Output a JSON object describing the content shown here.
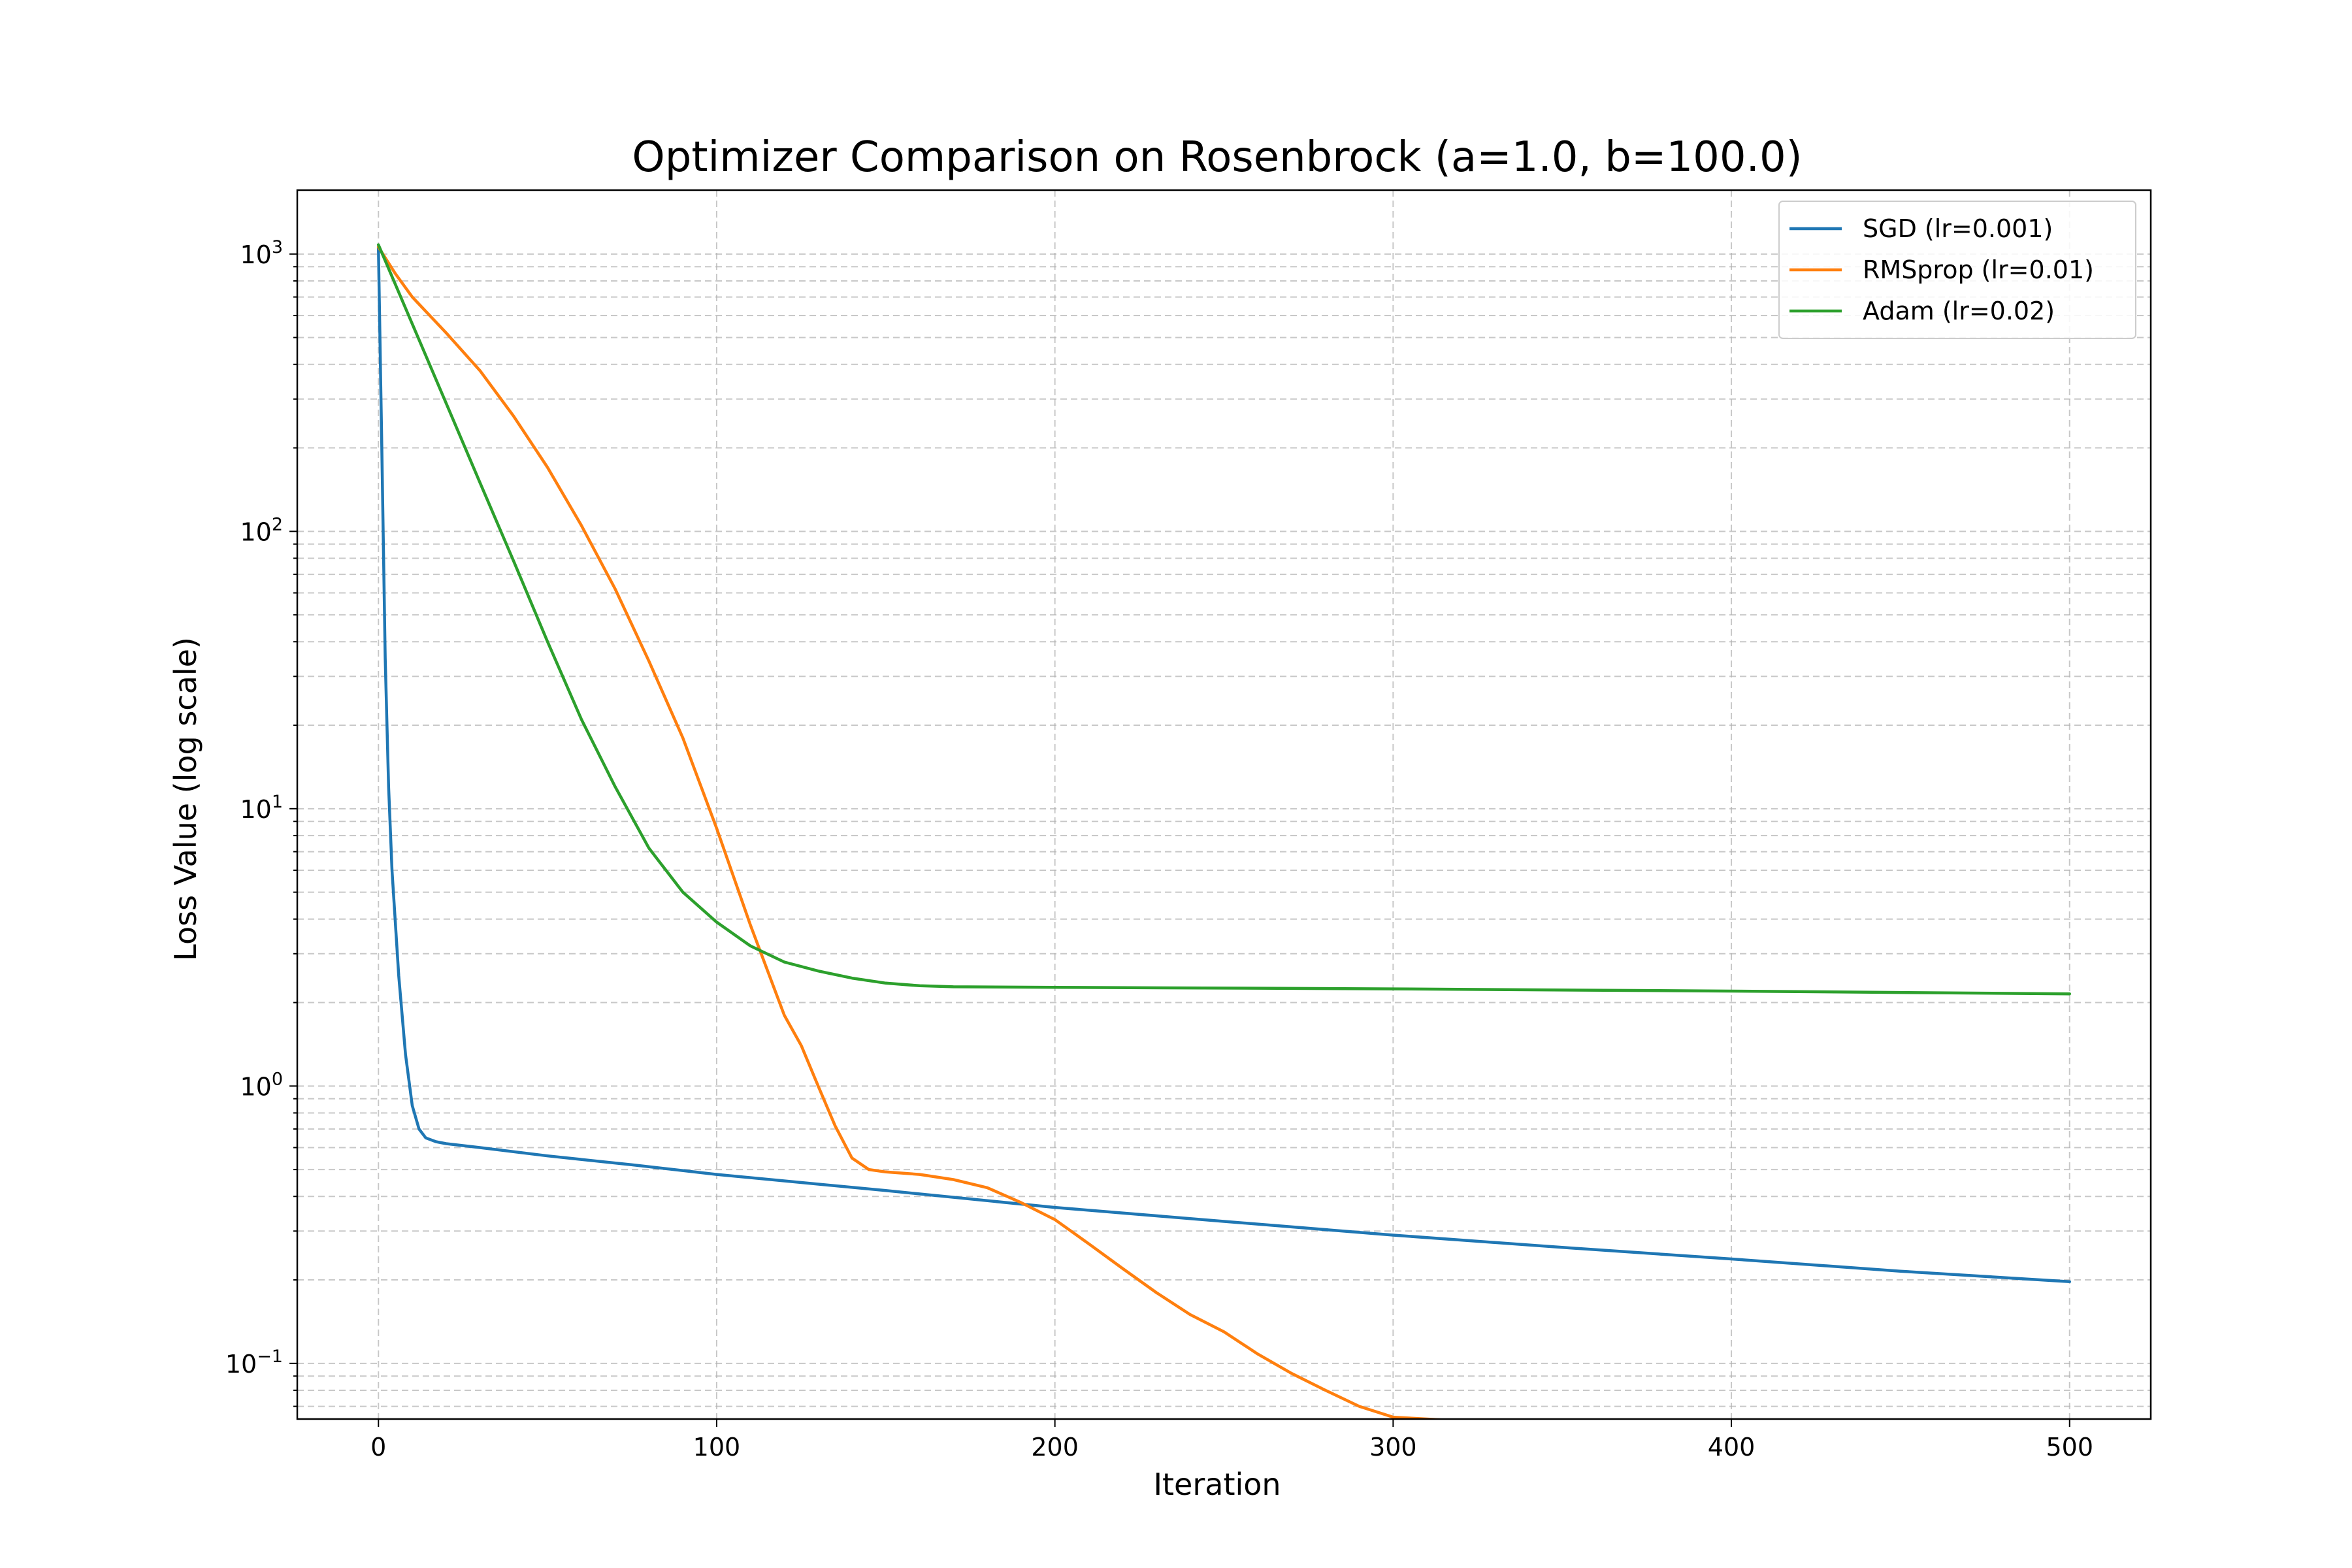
{
  "chart_data": {
    "type": "line",
    "title": "Optimizer Comparison on Rosenbrock (a=1.0, b=100.0)",
    "xlabel": "Iteration",
    "ylabel": "Loss Value (log scale)",
    "yscale": "log",
    "xlim": [
      -24,
      524
    ],
    "ylim": [
      0.063,
      1700
    ],
    "xticks": [
      0,
      100,
      200,
      300,
      400,
      500
    ],
    "xtick_labels": [
      "0",
      "100",
      "200",
      "300",
      "400",
      "500"
    ],
    "yticks": [
      0.1,
      1,
      10,
      100,
      1000
    ],
    "ytick_labels": [
      {
        "base": "10",
        "exp": "−1"
      },
      {
        "base": "10",
        "exp": "0"
      },
      {
        "base": "10",
        "exp": "1"
      },
      {
        "base": "10",
        "exp": "2"
      },
      {
        "base": "10",
        "exp": "3"
      }
    ],
    "grid": true,
    "legend_position": "top-right",
    "series": [
      {
        "name": "SGD (lr=0.001)",
        "color": "#1f77b4",
        "x": [
          0,
          1,
          2,
          3,
          4,
          6,
          8,
          10,
          12,
          14,
          17,
          20,
          30,
          50,
          75,
          100,
          150,
          200,
          250,
          300,
          350,
          400,
          450,
          500
        ],
        "y": [
          1060,
          200,
          35,
          12,
          6,
          2.5,
          1.3,
          0.85,
          0.7,
          0.65,
          0.63,
          0.62,
          0.6,
          0.56,
          0.52,
          0.48,
          0.42,
          0.365,
          0.325,
          0.29,
          0.262,
          0.238,
          0.215,
          0.197
        ]
      },
      {
        "name": "RMSprop (lr=0.01)",
        "color": "#ff7f0e",
        "x": [
          0,
          5,
          10,
          20,
          30,
          40,
          50,
          60,
          70,
          80,
          90,
          100,
          110,
          120,
          125,
          130,
          135,
          140,
          145,
          150,
          160,
          170,
          180,
          190,
          200,
          210,
          220,
          230,
          240,
          250,
          260,
          270,
          280,
          290,
          300,
          310,
          320,
          340,
          360,
          380,
          400,
          420,
          440,
          460,
          480,
          500
        ],
        "y": [
          1060,
          850,
          700,
          520,
          380,
          260,
          170,
          105,
          62,
          34,
          18,
          8.5,
          3.8,
          1.8,
          1.4,
          1.0,
          0.72,
          0.55,
          0.5,
          0.49,
          0.48,
          0.46,
          0.43,
          0.38,
          0.33,
          0.27,
          0.22,
          0.18,
          0.15,
          0.13,
          0.108,
          0.092,
          0.08,
          0.07,
          0.064,
          0.063,
          0.062,
          0.061,
          0.06,
          0.059,
          0.058,
          0.057,
          0.056,
          0.0555,
          0.055,
          0.0545
        ]
      },
      {
        "name": "Adam (lr=0.02)",
        "color": "#2ca02c",
        "x": [
          0,
          10,
          20,
          30,
          40,
          50,
          60,
          70,
          80,
          90,
          100,
          110,
          120,
          130,
          140,
          150,
          160,
          170,
          200,
          300,
          400,
          500
        ],
        "y": [
          1080,
          560,
          290,
          150,
          78,
          40,
          21,
          12,
          7.2,
          5.0,
          3.9,
          3.2,
          2.8,
          2.6,
          2.45,
          2.35,
          2.3,
          2.28,
          2.27,
          2.24,
          2.2,
          2.15
        ]
      }
    ]
  }
}
